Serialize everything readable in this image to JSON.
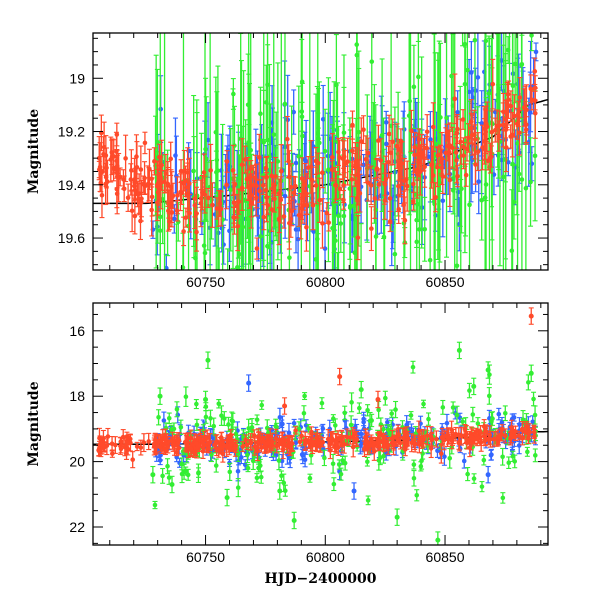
{
  "chart_data": [
    {
      "type": "scatter",
      "panel": "top",
      "xlabel": "",
      "ylabel": "Magnitude",
      "xlim": [
        60703,
        60893
      ],
      "ylim": [
        19.72,
        18.83
      ],
      "y_inverted": true,
      "xticks": [
        60750,
        60800,
        60850
      ],
      "yticks": [
        19.0,
        19.2,
        19.4,
        19.6
      ],
      "ytick_labels": [
        "19",
        "19.2",
        "19.4",
        "19.6"
      ],
      "series": [
        {
          "color": "#3366ff",
          "marker": "circle",
          "errorbars": true,
          "trend": [
            [
              60728,
              19.45
            ],
            [
              60760,
              19.42
            ],
            [
              60800,
              19.4
            ],
            [
              60840,
              19.33
            ],
            [
              60870,
              19.2
            ],
            [
              60888,
              19.12
            ]
          ],
          "x_range": [
            60728,
            60888
          ],
          "scatter": 0.12,
          "err_range": [
            0.03,
            0.18
          ]
        },
        {
          "color": "#33ee33",
          "marker": "circle",
          "errorbars": true,
          "trend": [
            [
              60728,
              19.45
            ],
            [
              60760,
              19.42
            ],
            [
              60800,
              19.4
            ],
            [
              60840,
              19.33
            ],
            [
              60870,
              19.2
            ],
            [
              60888,
              19.12
            ]
          ],
          "x_range": [
            60728,
            60888
          ],
          "scatter": 0.2,
          "err_range": [
            0.05,
            0.4
          ]
        },
        {
          "color": "#ff4a2a",
          "marker": "circle",
          "errorbars": true,
          "trend": [
            [
              60705,
              19.32
            ],
            [
              60728,
              19.42
            ],
            [
              60760,
              19.44
            ],
            [
              60800,
              19.4
            ],
            [
              60840,
              19.33
            ],
            [
              60870,
              19.2
            ],
            [
              60888,
              19.12
            ]
          ],
          "x_range": [
            60705,
            60888
          ],
          "scatter": 0.07,
          "err_range": [
            0.03,
            0.1
          ]
        }
      ],
      "model_curve": [
        [
          60703,
          19.47
        ],
        [
          60725,
          19.47
        ],
        [
          60760,
          19.44
        ],
        [
          60800,
          19.4
        ],
        [
          60840,
          19.33
        ],
        [
          60870,
          19.22
        ],
        [
          60885,
          19.1
        ],
        [
          60893,
          19.08
        ]
      ]
    },
    {
      "type": "scatter",
      "panel": "bottom",
      "xlabel": "HJD−2400000",
      "ylabel": "Magnitude",
      "xlim": [
        60703,
        60893
      ],
      "ylim": [
        22.55,
        15.15
      ],
      "y_inverted": true,
      "xticks": [
        60750,
        60800,
        60850
      ],
      "yticks": [
        16,
        18,
        20,
        22
      ],
      "series": [
        {
          "color": "#3366ff",
          "marker": "circle",
          "errorbars": true,
          "scatter": 0.35,
          "x_range": [
            60728,
            60888
          ],
          "outliers": [
            [
              60768,
              17.6
            ],
            [
              60796,
              19.2
            ],
            [
              60806,
              20.3
            ],
            [
              60812,
              20.9
            ],
            [
              60836,
              19.1
            ],
            [
              60868,
              20.4
            ]
          ]
        },
        {
          "color": "#33ee33",
          "marker": "circle",
          "errorbars": true,
          "scatter": 0.8,
          "x_range": [
            60728,
            60888
          ],
          "outliers": [
            [
              60751,
              16.9
            ],
            [
              60731,
              18.0
            ],
            [
              60750,
              18.1
            ],
            [
              60787,
              21.8
            ],
            [
              60815,
              17.8
            ],
            [
              60830,
              21.7
            ],
            [
              60847,
              22.4
            ],
            [
              60856,
              16.6
            ],
            [
              60868,
              17.2
            ],
            [
              60886,
              17.3
            ],
            [
              60736,
              20.7
            ],
            [
              60728,
              20.4
            ],
            [
              60759,
              21.1
            ],
            [
              60781,
              20.9
            ],
            [
              60862,
              17.7
            ]
          ]
        },
        {
          "color": "#ff4a2a",
          "marker": "circle",
          "errorbars": true,
          "scatter": 0.12,
          "x_range": [
            60705,
            60888
          ],
          "outliers": [
            [
              60886,
              15.55
            ],
            [
              60806,
              17.4
            ],
            [
              60822,
              18.1
            ],
            [
              60783,
              18.3
            ]
          ]
        }
      ],
      "model_curve": [
        [
          60703,
          19.47
        ],
        [
          60725,
          19.47
        ],
        [
          60760,
          19.44
        ],
        [
          60800,
          19.4
        ],
        [
          60840,
          19.33
        ],
        [
          60870,
          19.22
        ],
        [
          60885,
          19.1
        ],
        [
          60893,
          19.08
        ]
      ]
    }
  ],
  "colors": {
    "blue": "#3366ff",
    "green": "#33ee33",
    "red": "#ff4a2a",
    "axis": "#000000"
  }
}
